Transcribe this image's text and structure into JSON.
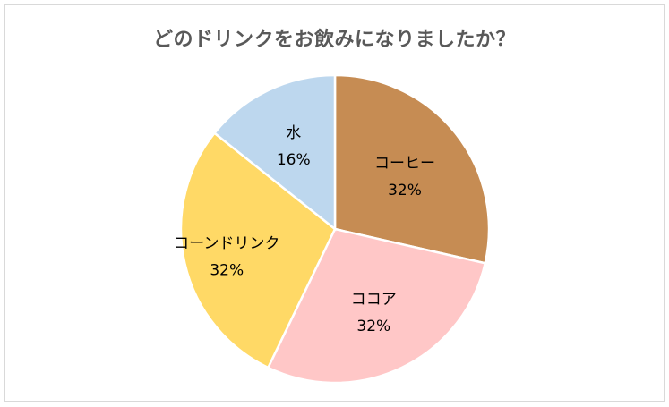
{
  "chart_data": {
    "type": "pie",
    "title": "どのドリンクをお飲みになりましたか？",
    "slices": [
      {
        "label": "コーヒー",
        "value": 32,
        "value_label": "32%",
        "color": "#c68c53"
      },
      {
        "label": "ココア",
        "value": 32,
        "value_label": "32%",
        "color": "#ffc7c7"
      },
      {
        "label": "コーンドリンク",
        "value": 32,
        "value_label": "32%",
        "color": "#ffd966"
      },
      {
        "label": "水",
        "value": 16,
        "value_label": "16%",
        "color": "#bdd7ee"
      }
    ],
    "start_angle": "12 o'clock",
    "direction": "clockwise",
    "legend": "none"
  }
}
